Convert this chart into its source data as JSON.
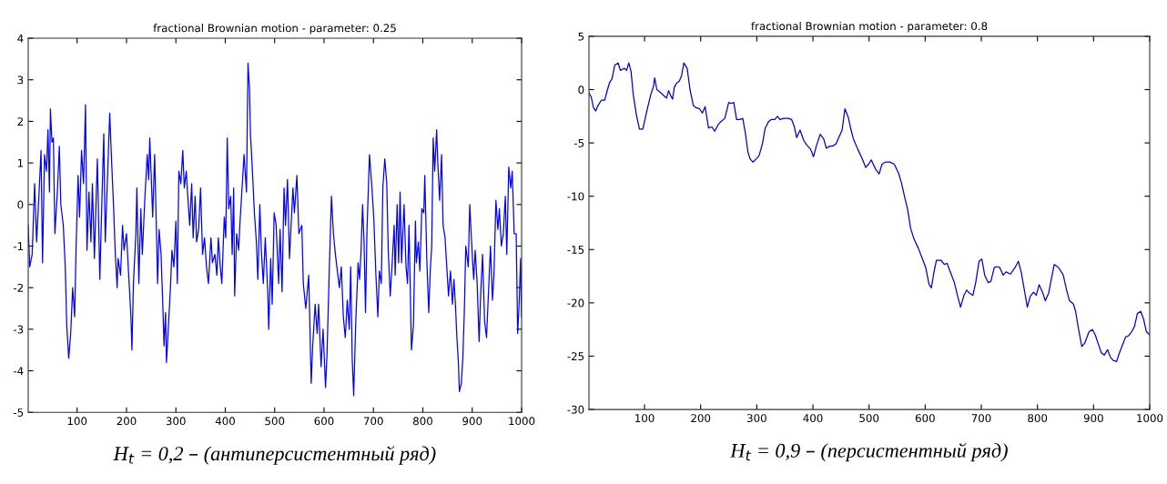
{
  "chart_data": [
    {
      "type": "line",
      "title": "fractional Brownian motion - parameter: 0.25",
      "xlim": [
        1,
        1000
      ],
      "ylim": [
        -5,
        4
      ],
      "xticks": [
        100,
        200,
        300,
        400,
        500,
        600,
        700,
        800,
        900,
        1000
      ],
      "yticks": [
        -5,
        -4,
        -3,
        -2,
        -1,
        0,
        1,
        2,
        3,
        4
      ],
      "grid": false,
      "legend": false,
      "marker": "none",
      "line_style": "solid",
      "annotations": [
        "H$_{t}$ = 0,2 – (антиперсистентный ряд)"
      ],
      "series": [
        {
          "color": "#0000ff",
          "x": [
            1,
            4,
            9,
            14,
            18,
            23,
            27,
            30,
            34,
            38,
            41,
            44,
            46,
            49,
            52,
            55,
            60,
            64,
            67,
            72,
            76,
            79,
            83,
            87,
            91,
            95,
            98,
            102,
            105,
            109,
            113,
            117,
            120,
            124,
            128,
            131,
            135,
            139,
            141,
            146,
            150,
            154,
            157,
            162,
            166,
            170,
            174,
            177,
            181,
            183,
            188,
            192,
            195,
            200,
            204,
            209,
            211,
            214,
            219,
            221,
            225,
            229,
            232,
            237,
            242,
            245,
            247,
            250,
            253,
            257,
            261,
            263,
            266,
            270,
            274,
            276,
            279,
            281,
            285,
            289,
            292,
            296,
            300,
            303,
            306,
            310,
            314,
            317,
            321,
            324,
            328,
            332,
            335,
            339,
            342,
            346,
            350,
            354,
            358,
            362,
            366,
            371,
            374,
            379,
            383,
            386,
            390,
            393,
            398,
            401,
            404,
            407,
            411,
            414,
            417,
            419,
            423,
            427,
            430,
            434,
            438,
            443,
            446,
            449,
            451,
            455,
            459,
            463,
            466,
            470,
            473,
            477,
            481,
            486,
            488,
            492,
            495,
            499,
            503,
            508,
            511,
            515,
            519,
            522,
            526,
            530,
            537,
            540,
            545,
            549,
            555,
            558,
            563,
            569,
            574,
            577,
            582,
            586,
            589,
            594,
            598,
            603,
            606,
            611,
            615,
            619,
            623,
            627,
            631,
            635,
            639,
            643,
            647,
            651,
            654,
            657,
            660,
            664,
            669,
            672,
            675,
            678,
            681,
            684,
            687,
            692,
            697,
            701,
            705,
            709,
            712,
            716,
            719,
            723,
            727,
            730,
            734,
            738,
            742,
            744,
            748,
            751,
            754,
            757,
            762,
            766,
            769,
            772,
            777,
            781,
            785,
            787,
            791,
            794,
            798,
            802,
            804,
            808,
            812,
            815,
            818,
            821,
            824,
            828,
            830,
            834,
            838,
            841,
            845,
            849,
            852,
            856,
            860,
            863,
            866,
            869,
            872,
            874,
            878,
            881,
            884,
            887,
            892,
            895,
            900,
            903,
            906,
            910,
            914,
            917,
            921,
            925,
            929,
            933,
            937,
            941,
            944,
            948,
            952,
            955,
            959,
            963,
            967,
            970,
            974,
            978,
            981,
            985,
            989,
            992,
            995,
            998,
            1000
          ],
          "values": [
            -0.5,
            -1.5,
            -1.2,
            0.5,
            -0.9,
            0.3,
            1.3,
            -1.4,
            1.2,
            0.8,
            1.8,
            0.3,
            2.3,
            1.5,
            1.6,
            -0.7,
            0.3,
            1.4,
            0,
            -0.5,
            -1.5,
            -2.9,
            -3.7,
            -3.1,
            -2.0,
            -2.7,
            -1.0,
            0.7,
            -0.3,
            1.3,
            0.5,
            2.4,
            -1.1,
            0.3,
            -0.9,
            0.5,
            -1.3,
            0.3,
            1.1,
            -1.8,
            0,
            1.7,
            -0.9,
            0.8,
            2.2,
            1.0,
            -0.1,
            -1.1,
            -2.0,
            -1.3,
            -1.7,
            -0.5,
            -1.1,
            -0.7,
            -1.6,
            -2.7,
            -3.5,
            -1.9,
            -0.7,
            0.4,
            -1.9,
            -0.1,
            -1.2,
            0.1,
            1.2,
            0.6,
            1.6,
            0.7,
            -0.3,
            1.2,
            -0.8,
            -1.9,
            -0.6,
            -1.2,
            -2.6,
            -3.4,
            -2.6,
            -3.8,
            -2.9,
            -2.0,
            -1.1,
            -1.5,
            -0.4,
            -1.9,
            0.8,
            0.5,
            1.3,
            0.4,
            0.8,
            0.2,
            -0.5,
            0.5,
            -0.8,
            0.2,
            -0.9,
            -0.6,
            0.4,
            -1.2,
            -0.8,
            -1.5,
            -1.9,
            -0.8,
            -1.4,
            -1.2,
            -1.7,
            -0.8,
            -1.5,
            -1.9,
            -0.3,
            -0.8,
            1.6,
            -0.1,
            0.2,
            -1.2,
            0.4,
            -2.2,
            -0.7,
            -1.1,
            -0.4,
            0.4,
            1.2,
            0.3,
            3.4,
            2.8,
            1.7,
            0.8,
            -0.2,
            -0.9,
            -1.8,
            0,
            -1.1,
            -1.9,
            -0.8,
            -2.1,
            -3.0,
            -1.3,
            -2.4,
            -0.2,
            -0.5,
            -1.9,
            -0.6,
            -2.1,
            0.4,
            -0.5,
            0.6,
            -1.3,
            0.4,
            -0.2,
            0.7,
            -0.7,
            -0.5,
            -1.9,
            -2.5,
            -1.7,
            -4.3,
            -3.4,
            -2.4,
            -3.1,
            -2.4,
            -3.9,
            -3.0,
            -4.4,
            -3.6,
            -1.4,
            0.2,
            -0.7,
            -1.2,
            -1.6,
            -2.0,
            -1.5,
            -2.7,
            -3.2,
            -2.3,
            -3.0,
            -1.5,
            -3.7,
            -4.6,
            -2.9,
            -1.4,
            -1.8,
            -1.1,
            0.0,
            -0.9,
            -2.6,
            -0.6,
            1.2,
            0.4,
            -0.4,
            -1.7,
            -2.7,
            -1.6,
            -1.9,
            0.4,
            1.1,
            0.5,
            -1.1,
            -2.2,
            -1.4,
            -0.5,
            -1.7,
            0.0,
            -1.4,
            0.3,
            -1.4,
            0.0,
            -1.5,
            -1.9,
            -0.5,
            -3.5,
            -2.9,
            -0.4,
            -1.4,
            -0.9,
            -1.6,
            -0.1,
            -0.2,
            0.7,
            -1.3,
            -2.6,
            -1.6,
            -1.0,
            1.6,
            0.8,
            1.8,
            1.1,
            0.1,
            1.2,
            -0.5,
            -0.8,
            -1.6,
            -2.2,
            -1.6,
            -2.4,
            -1.8,
            -2.4,
            -3.2,
            -3.8,
            -4.5,
            -4.3,
            -3.7,
            -2.6,
            -1.0,
            -1.5,
            0.0,
            -1.2,
            -1.8,
            -1.1,
            -1.9,
            -3.3,
            -2.2,
            -1.2,
            -2.8,
            -3.2,
            -2.1,
            -1.0,
            -2.3,
            -1.7,
            0.1,
            -0.6,
            -0.1,
            -1.0,
            -0.7,
            0.2,
            -1.2,
            0.9,
            0.4,
            0.8,
            -0.7,
            -0.7,
            -3.1,
            -2.4,
            -1.3,
            -2.7
          ]
        }
      ]
    },
    {
      "type": "line",
      "title": "fractional Brownian motion - parameter: 0.8",
      "xlim": [
        1,
        1000
      ],
      "ylim": [
        -30,
        5
      ],
      "xticks": [
        100,
        200,
        300,
        400,
        500,
        600,
        700,
        800,
        900,
        1000
      ],
      "yticks": [
        -30,
        -25,
        -20,
        -15,
        -10,
        -5,
        0,
        5
      ],
      "grid": false,
      "legend": false,
      "marker": "none",
      "line_style": "solid",
      "annotations": [
        "H$_{t}$ = 0,9 – (персистентный ряд)"
      ],
      "series": [
        {
          "color": "#0000cc",
          "x": [
            1,
            5,
            9,
            13,
            17,
            23,
            29,
            34,
            38,
            42,
            47,
            53,
            57,
            64,
            68,
            72,
            76,
            80,
            86,
            91,
            97,
            100,
            105,
            111,
            116,
            118,
            122,
            129,
            135,
            139,
            143,
            146,
            150,
            153,
            157,
            162,
            166,
            170,
            176,
            181,
            187,
            192,
            198,
            203,
            208,
            214,
            220,
            225,
            231,
            236,
            243,
            250,
            255,
            259,
            264,
            270,
            275,
            280,
            284,
            288,
            293,
            299,
            304,
            310,
            315,
            321,
            326,
            332,
            337,
            341,
            348,
            356,
            362,
            367,
            371,
            377,
            384,
            389,
            396,
            401,
            406,
            413,
            419,
            424,
            430,
            435,
            441,
            446,
            452,
            457,
            463,
            468,
            472,
            480,
            488,
            494,
            499,
            504,
            512,
            518,
            523,
            529,
            537,
            545,
            553,
            558,
            564,
            569,
            574,
            580,
            588,
            596,
            601,
            607,
            611,
            615,
            620,
            628,
            634,
            639,
            647,
            652,
            658,
            663,
            669,
            674,
            679,
            685,
            690,
            696,
            701,
            706,
            712,
            717,
            723,
            728,
            733,
            739,
            744,
            752,
            760,
            766,
            771,
            776,
            782,
            787,
            793,
            798,
            803,
            809,
            814,
            820,
            825,
            830,
            838,
            846,
            852,
            857,
            864,
            868,
            873,
            879,
            884,
            892,
            898,
            903,
            908,
            914,
            919,
            925,
            930,
            935,
            941,
            946,
            952,
            957,
            962,
            968,
            973,
            978,
            984,
            989,
            994,
            1000
          ],
          "values": [
            -0.3,
            -0.7,
            -1.7,
            -2.0,
            -1.5,
            -1.0,
            -1.0,
            0,
            0.7,
            1.0,
            2.3,
            2.5,
            1.8,
            2.0,
            1.8,
            2.5,
            1.7,
            -0.5,
            -2.5,
            -3.7,
            -3.7,
            -3.0,
            -1.8,
            -0.5,
            0.3,
            1.1,
            0.0,
            -0.3,
            -0.6,
            -0.8,
            -0.1,
            -0.5,
            -0.9,
            0.2,
            0.6,
            0.8,
            1.3,
            2.5,
            2.0,
            0.0,
            -1.5,
            -1.7,
            -1.8,
            -2.2,
            -1.6,
            -3.6,
            -3.5,
            -3.9,
            -3.3,
            -3.0,
            -2.7,
            -1.2,
            -1.3,
            -1.2,
            -2.8,
            -2.8,
            -2.7,
            -4.2,
            -5.8,
            -6.5,
            -6.8,
            -6.5,
            -6.2,
            -5.1,
            -3.6,
            -3.0,
            -2.8,
            -2.8,
            -2.5,
            -2.8,
            -2.7,
            -2.7,
            -2.8,
            -3.5,
            -4.5,
            -3.8,
            -4.8,
            -5.2,
            -5.6,
            -6.3,
            -5.3,
            -4.2,
            -4.6,
            -5.5,
            -5.3,
            -5.3,
            -5.1,
            -4.5,
            -3.8,
            -1.8,
            -2.6,
            -3.8,
            -4.6,
            -5.6,
            -6.5,
            -7.3,
            -7.0,
            -6.6,
            -7.5,
            -7.9,
            -7.0,
            -6.8,
            -6.8,
            -7.0,
            -7.9,
            -8.8,
            -10.2,
            -11.3,
            -13.0,
            -14.0,
            -14.9,
            -16.0,
            -16.7,
            -18.3,
            -18.6,
            -17.3,
            -16.0,
            -16.0,
            -16.4,
            -16.3,
            -17.4,
            -18.1,
            -19.4,
            -20.4,
            -19.3,
            -18.8,
            -19.1,
            -19.3,
            -18.1,
            -16.1,
            -15.9,
            -17.4,
            -18.1,
            -18.0,
            -16.7,
            -16.6,
            -16.7,
            -17.4,
            -17.1,
            -17.3,
            -16.7,
            -16.1,
            -17.1,
            -18.6,
            -20.4,
            -19.4,
            -19.0,
            -19.3,
            -18.3,
            -19.0,
            -19.8,
            -19.1,
            -17.7,
            -16.4,
            -16.7,
            -17.4,
            -18.8,
            -19.8,
            -20.1,
            -20.8,
            -22.4,
            -24.1,
            -23.8,
            -22.7,
            -22.5,
            -23.0,
            -23.8,
            -24.7,
            -24.9,
            -24.4,
            -25.1,
            -25.4,
            -25.5,
            -24.7,
            -23.9,
            -23.2,
            -23.1,
            -22.7,
            -22.2,
            -21.0,
            -20.8,
            -21.5,
            -22.7,
            -23.0
          ]
        }
      ]
    }
  ]
}
